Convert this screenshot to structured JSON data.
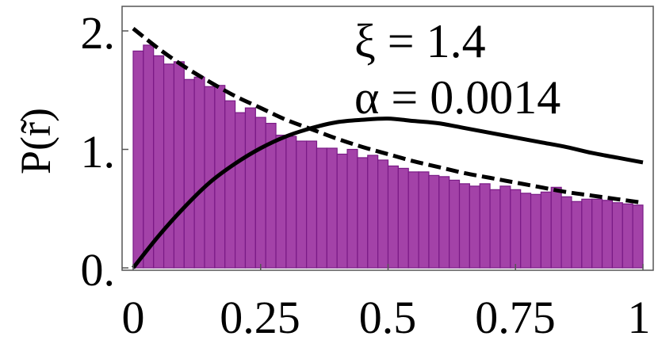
{
  "chart_data": {
    "type": "bar",
    "title": "",
    "xlabel": "",
    "ylabel": "P(r̃)",
    "xlim": [
      0,
      1
    ],
    "ylim": [
      0,
      2.2
    ],
    "x_ticks": [
      "0",
      "0.25",
      "0.5",
      "0.75",
      "1"
    ],
    "y_ticks": [
      "0.",
      "1.",
      "2."
    ],
    "grid": false,
    "annotations": [
      "ξ = 1.4",
      "α = 0.0014"
    ],
    "bin_width": 0.02,
    "histogram": {
      "bin_start": [
        0.0,
        0.02,
        0.04,
        0.06,
        0.08,
        0.1,
        0.12,
        0.14,
        0.16,
        0.18,
        0.2,
        0.22,
        0.24,
        0.26,
        0.28,
        0.3,
        0.32,
        0.34,
        0.36,
        0.38,
        0.4,
        0.42,
        0.44,
        0.46,
        0.48,
        0.5,
        0.52,
        0.54,
        0.56,
        0.58,
        0.6,
        0.62,
        0.64,
        0.66,
        0.68,
        0.7,
        0.72,
        0.74,
        0.76,
        0.78,
        0.8,
        0.82,
        0.84,
        0.86,
        0.88,
        0.9,
        0.92,
        0.94,
        0.96,
        0.98
      ],
      "values": [
        1.83,
        1.88,
        1.79,
        1.72,
        1.74,
        1.59,
        1.61,
        1.53,
        1.54,
        1.41,
        1.31,
        1.35,
        1.27,
        1.22,
        1.12,
        1.11,
        1.07,
        1.07,
        1.01,
        1.01,
        0.96,
        1.0,
        0.93,
        0.95,
        0.91,
        0.86,
        0.84,
        0.81,
        0.81,
        0.78,
        0.77,
        0.74,
        0.71,
        0.69,
        0.71,
        0.66,
        0.69,
        0.66,
        0.63,
        0.62,
        0.64,
        0.68,
        0.6,
        0.56,
        0.58,
        0.58,
        0.57,
        0.55,
        0.54,
        0.53
      ],
      "fill": "#a342a8",
      "edge": "#7a1a86"
    },
    "series": [
      {
        "style": "dashed",
        "color": "#000000",
        "x": [
          0.0,
          0.05,
          0.1,
          0.15,
          0.2,
          0.25,
          0.3,
          0.35,
          0.4,
          0.45,
          0.5,
          0.55,
          0.6,
          0.65,
          0.7,
          0.75,
          0.8,
          0.85,
          0.9,
          0.95,
          1.0
        ],
        "y": [
          2.02,
          1.85,
          1.7,
          1.57,
          1.45,
          1.35,
          1.25,
          1.17,
          1.09,
          1.02,
          0.96,
          0.9,
          0.85,
          0.8,
          0.76,
          0.72,
          0.68,
          0.64,
          0.61,
          0.58,
          0.55
        ]
      },
      {
        "style": "solid",
        "color": "#000000",
        "x": [
          0.0,
          0.05,
          0.1,
          0.15,
          0.2,
          0.25,
          0.3,
          0.35,
          0.4,
          0.45,
          0.5,
          0.55,
          0.6,
          0.65,
          0.7,
          0.75,
          0.8,
          0.85,
          0.9,
          0.95,
          1.0
        ],
        "y": [
          0.0,
          0.27,
          0.51,
          0.72,
          0.88,
          1.01,
          1.11,
          1.18,
          1.23,
          1.25,
          1.26,
          1.24,
          1.22,
          1.18,
          1.14,
          1.1,
          1.06,
          1.02,
          0.97,
          0.93,
          0.89
        ]
      }
    ]
  }
}
